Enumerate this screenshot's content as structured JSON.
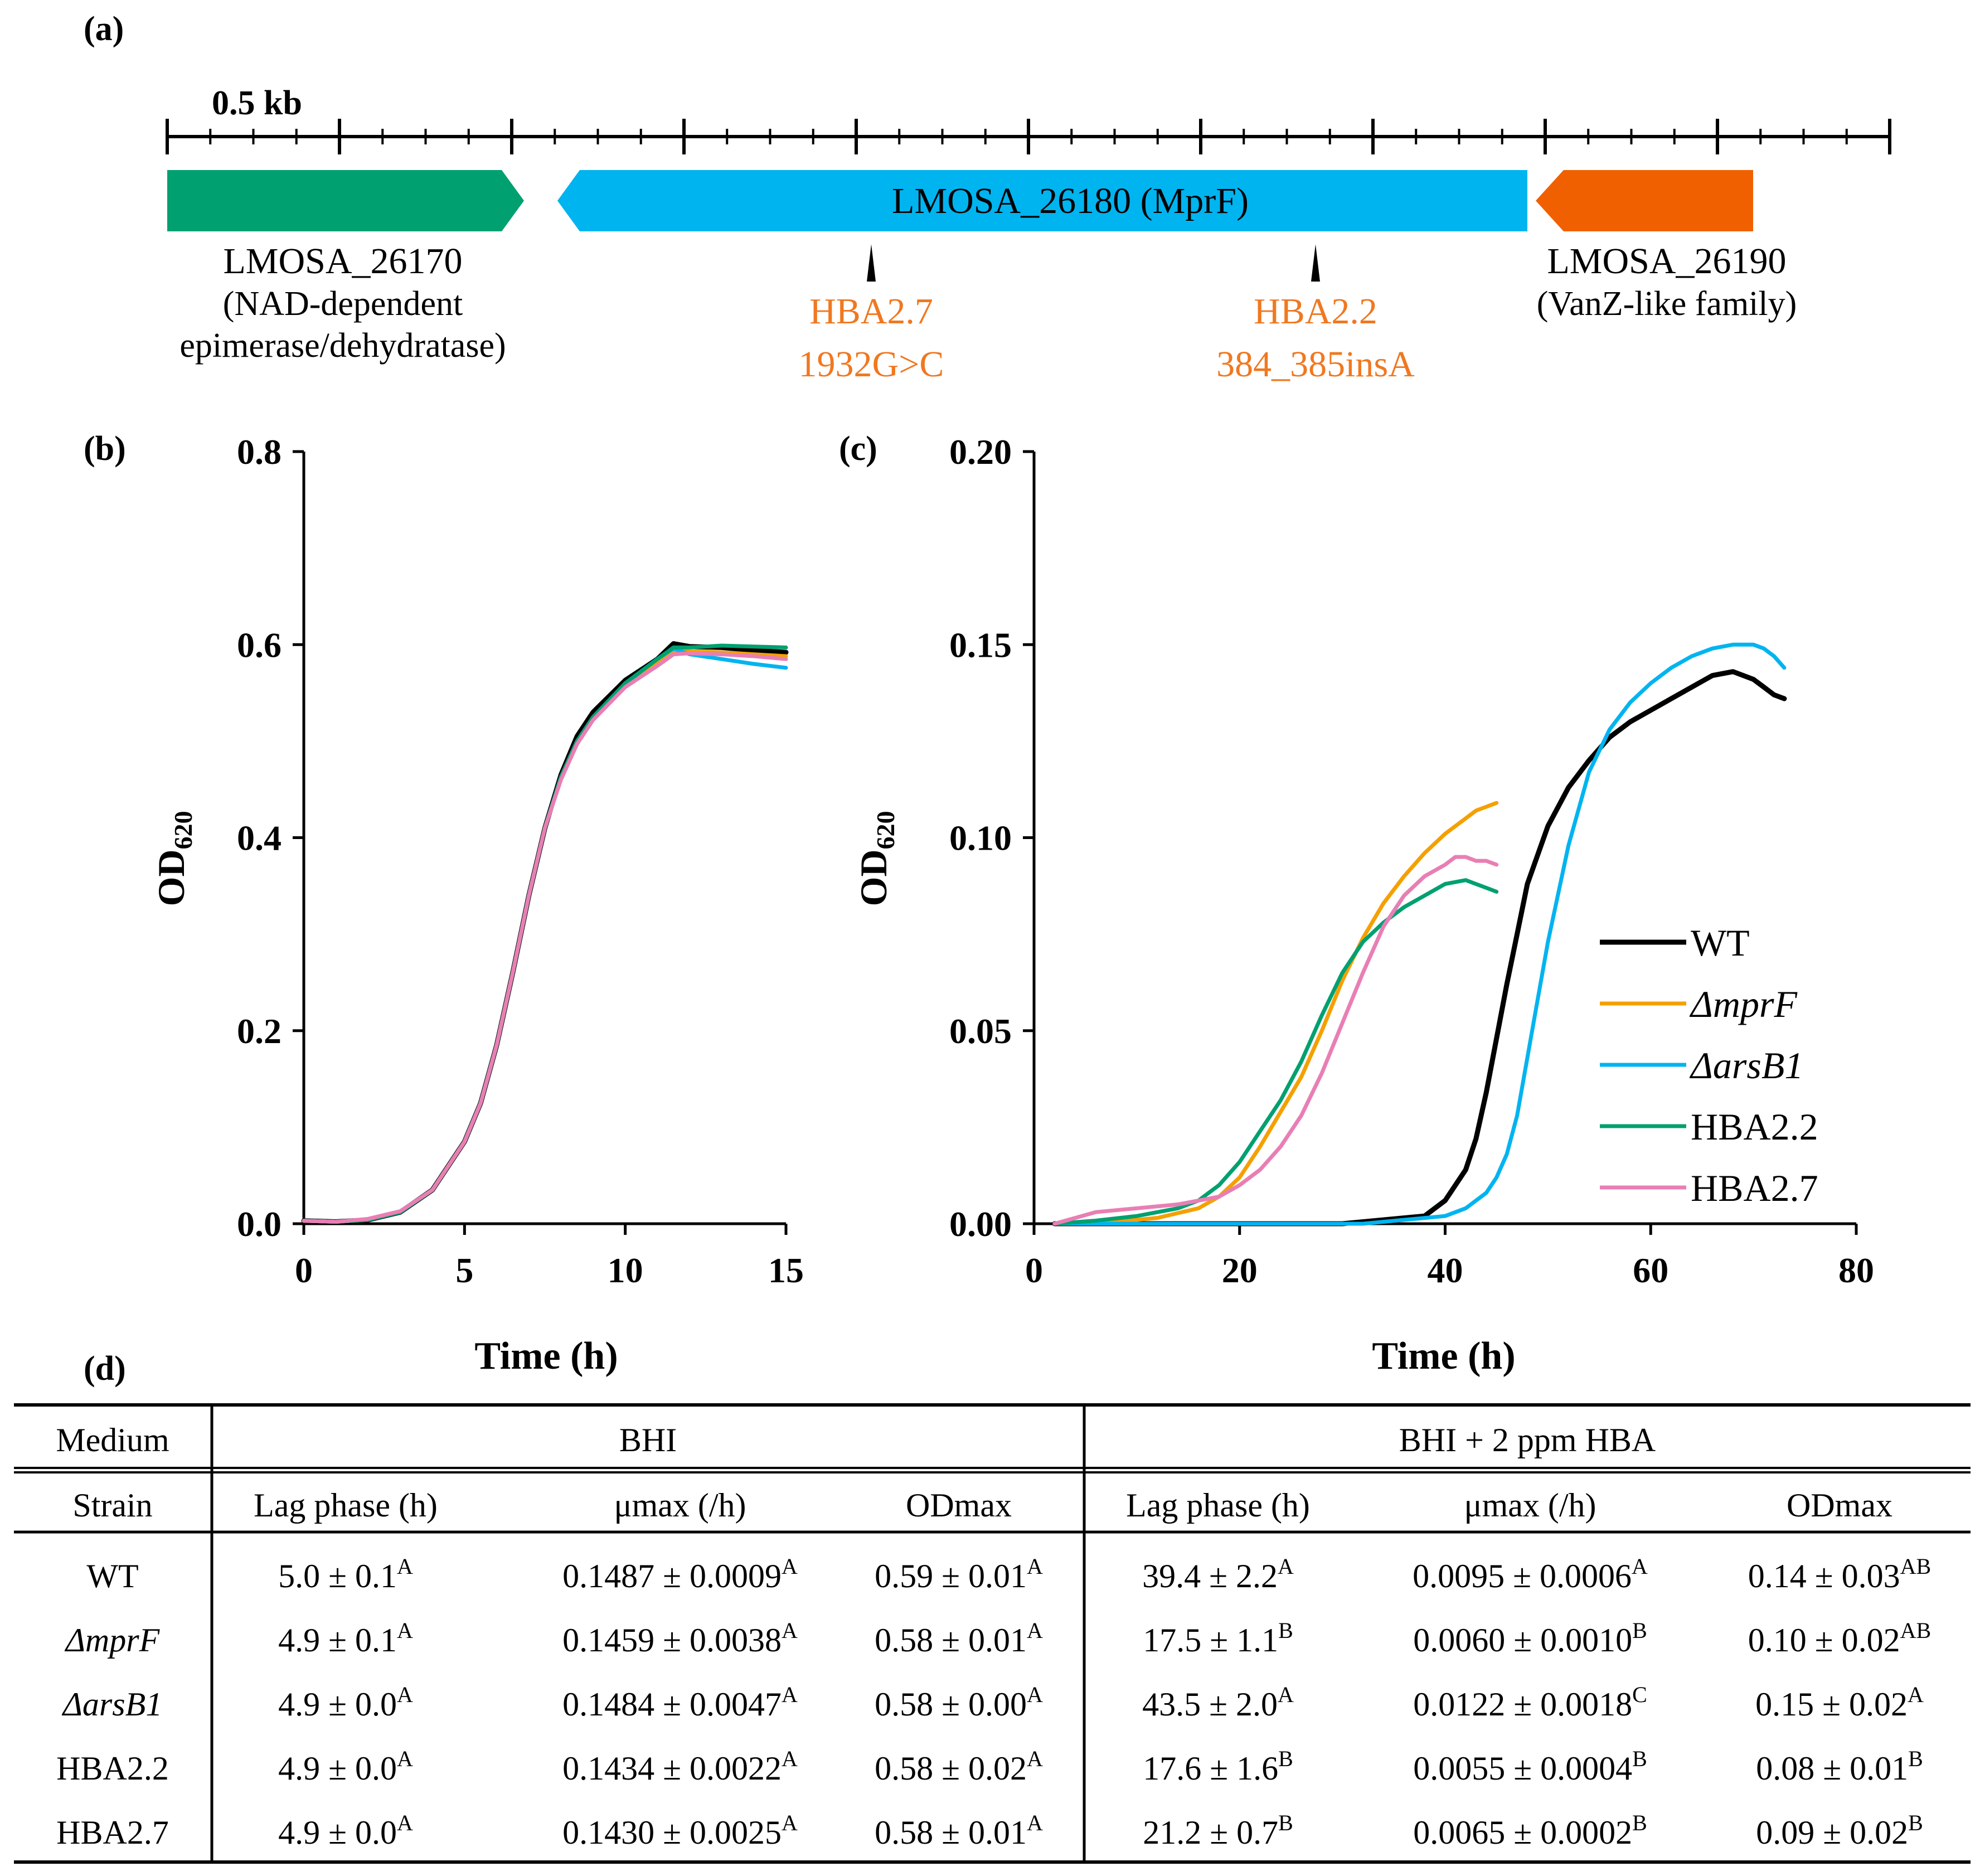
{
  "panel_labels": {
    "a": "(a)",
    "b": "(b)",
    "c": "(c)",
    "d": "(d)"
  },
  "colors": {
    "wt": "#000000",
    "mprf": "#f5a000",
    "arsb1": "#00b4f0",
    "hba22": "#00a070",
    "hba27": "#e87fb4",
    "gene_left": "#00a070",
    "gene_mid": "#00b4f0",
    "gene_right": "#f06000",
    "mutation": "#f07820"
  },
  "gene_map": {
    "scale_label": "0.5 kb",
    "genes": [
      {
        "id": "LMOSA_26170",
        "name": "LMOSA_26170",
        "desc1": "(NAD-dependent",
        "desc2": "epimerase/dehydratase)"
      },
      {
        "id": "LMOSA_26180",
        "name": "LMOSA_26180 (MprF)"
      },
      {
        "id": "LMOSA_26190",
        "name": "LMOSA_26190",
        "desc1": "(VanZ-like family)"
      }
    ],
    "mutations": [
      {
        "strain": "HBA2.7",
        "change": "1932G>C"
      },
      {
        "strain": "HBA2.2",
        "change": "384_385insA"
      }
    ]
  },
  "chart_data": [
    {
      "type": "line",
      "panel": "b",
      "xlabel": "Time (h)",
      "ylabel_main": "OD",
      "ylabel_sub": "620",
      "xlim": [
        0,
        15
      ],
      "ylim": [
        0,
        0.8
      ],
      "xticks": [
        "0",
        "5",
        "10",
        "15"
      ],
      "yticks": [
        "0.0",
        "0.2",
        "0.4",
        "0.6",
        "0.8"
      ],
      "series": [
        {
          "name": "WT",
          "x": [
            0,
            1,
            2,
            3,
            4,
            5,
            5.5,
            6,
            6.5,
            7,
            7.5,
            8,
            8.5,
            9,
            10,
            11,
            11.5,
            12,
            13,
            14,
            15
          ],
          "values": [
            0.003,
            0.002,
            0.004,
            0.012,
            0.035,
            0.085,
            0.125,
            0.185,
            0.26,
            0.34,
            0.41,
            0.465,
            0.505,
            0.53,
            0.563,
            0.585,
            0.601,
            0.598,
            0.597,
            0.594,
            0.592
          ]
        },
        {
          "name": "ΔmprF",
          "x": [
            0,
            1,
            2,
            3,
            4,
            5,
            5.5,
            6,
            6.5,
            7,
            7.5,
            8,
            8.5,
            9,
            10,
            11,
            11.5,
            12,
            13,
            14,
            15
          ],
          "values": [
            0.003,
            0.002,
            0.004,
            0.012,
            0.035,
            0.085,
            0.125,
            0.185,
            0.26,
            0.34,
            0.41,
            0.463,
            0.5,
            0.525,
            0.558,
            0.58,
            0.594,
            0.593,
            0.592,
            0.59,
            0.588
          ]
        },
        {
          "name": "ΔarsB1",
          "x": [
            0,
            1,
            2,
            3,
            4,
            5,
            5.5,
            6,
            6.5,
            7,
            7.5,
            8,
            8.5,
            9,
            10,
            11,
            11.5,
            12,
            13,
            14,
            15
          ],
          "values": [
            0.003,
            0.002,
            0.004,
            0.012,
            0.035,
            0.085,
            0.125,
            0.185,
            0.26,
            0.34,
            0.41,
            0.463,
            0.5,
            0.525,
            0.56,
            0.585,
            0.596,
            0.59,
            0.585,
            0.58,
            0.576
          ]
        },
        {
          "name": "HBA2.2",
          "x": [
            0,
            1,
            2,
            3,
            4,
            5,
            5.5,
            6,
            6.5,
            7,
            7.5,
            8,
            8.5,
            9,
            10,
            11,
            11.5,
            12,
            13,
            14,
            15
          ],
          "values": [
            0.003,
            0.002,
            0.004,
            0.012,
            0.035,
            0.085,
            0.125,
            0.185,
            0.26,
            0.34,
            0.41,
            0.463,
            0.5,
            0.525,
            0.56,
            0.585,
            0.597,
            0.597,
            0.599,
            0.598,
            0.597
          ]
        },
        {
          "name": "HBA2.7",
          "x": [
            0,
            1,
            2,
            3,
            4,
            5,
            5.5,
            6,
            6.5,
            7,
            7.5,
            8,
            8.5,
            9,
            10,
            11,
            11.5,
            12,
            13,
            14,
            15
          ],
          "values": [
            0.003,
            0.002,
            0.005,
            0.013,
            0.035,
            0.085,
            0.125,
            0.185,
            0.26,
            0.34,
            0.41,
            0.46,
            0.497,
            0.522,
            0.556,
            0.578,
            0.59,
            0.591,
            0.59,
            0.588,
            0.585
          ]
        }
      ]
    },
    {
      "type": "line",
      "panel": "c",
      "xlabel": "Time (h)",
      "ylabel_main": "OD",
      "ylabel_sub": "620",
      "xlim": [
        0,
        80
      ],
      "ylim": [
        0,
        0.2
      ],
      "xticks": [
        "0",
        "20",
        "40",
        "60",
        "80"
      ],
      "yticks": [
        "0.00",
        "0.05",
        "0.10",
        "0.15",
        "0.20"
      ],
      "legend_position": "right",
      "series": [
        {
          "name": "WT",
          "x": [
            2,
            30,
            38,
            40,
            42,
            43,
            44,
            45,
            46,
            47,
            48,
            50,
            52,
            54,
            56,
            58,
            60,
            62,
            64,
            66,
            68,
            70,
            71,
            72,
            73
          ],
          "values": [
            0,
            0,
            0.002,
            0.006,
            0.014,
            0.022,
            0.034,
            0.048,
            0.062,
            0.075,
            0.088,
            0.103,
            0.113,
            0.12,
            0.126,
            0.13,
            0.133,
            0.136,
            0.139,
            0.142,
            0.143,
            0.141,
            0.139,
            0.137,
            0.136
          ]
        },
        {
          "name": "ΔmprF",
          "x": [
            2,
            8,
            12,
            16,
            18,
            20,
            22,
            24,
            26,
            28,
            30,
            32,
            34,
            36,
            38,
            40,
            42,
            43,
            44,
            45
          ],
          "values": [
            0,
            0.0005,
            0.0015,
            0.004,
            0.007,
            0.012,
            0.02,
            0.029,
            0.038,
            0.05,
            0.063,
            0.074,
            0.083,
            0.09,
            0.096,
            0.101,
            0.105,
            0.107,
            0.108,
            0.109
          ]
        },
        {
          "name": "ΔarsB1",
          "x": [
            2,
            32,
            40,
            42,
            44,
            45,
            46,
            47,
            48,
            49,
            50,
            52,
            54,
            56,
            58,
            60,
            62,
            64,
            66,
            68,
            70,
            71,
            72,
            73
          ],
          "values": [
            0,
            0,
            0.002,
            0.004,
            0.008,
            0.012,
            0.018,
            0.028,
            0.043,
            0.058,
            0.073,
            0.098,
            0.117,
            0.128,
            0.135,
            0.14,
            0.144,
            0.147,
            0.149,
            0.15,
            0.15,
            0.149,
            0.147,
            0.144
          ]
        },
        {
          "name": "HBA2.2",
          "x": [
            2,
            6,
            10,
            14,
            16,
            18,
            20,
            22,
            24,
            26,
            28,
            30,
            32,
            34,
            36,
            38,
            40,
            42,
            43,
            44,
            45
          ],
          "values": [
            0,
            0.0008,
            0.002,
            0.004,
            0.006,
            0.01,
            0.016,
            0.024,
            0.032,
            0.042,
            0.054,
            0.065,
            0.073,
            0.078,
            0.082,
            0.085,
            0.088,
            0.089,
            0.088,
            0.087,
            0.086
          ]
        },
        {
          "name": "HBA2.7",
          "x": [
            2,
            4,
            6,
            10,
            14,
            18,
            20,
            22,
            24,
            26,
            28,
            30,
            32,
            34,
            36,
            38,
            40,
            41,
            42,
            43,
            44,
            45
          ],
          "values": [
            0,
            0.0015,
            0.003,
            0.004,
            0.005,
            0.007,
            0.01,
            0.014,
            0.02,
            0.028,
            0.039,
            0.052,
            0.065,
            0.077,
            0.085,
            0.09,
            0.093,
            0.095,
            0.095,
            0.094,
            0.094,
            0.093
          ]
        }
      ]
    }
  ],
  "table": {
    "medium_label": "Medium",
    "strain_label": "Strain",
    "media": [
      "BHI",
      "BHI + 2 ppm HBA"
    ],
    "columns": [
      "Lag phase (h)",
      "μmax (/h)",
      "ODmax",
      "Lag phase (h)",
      "μmax (/h)",
      "ODmax"
    ],
    "rows": [
      {
        "strain": "WT",
        "italic": false,
        "cells": [
          {
            "v": "5.0 ± 0.1",
            "s": "A"
          },
          {
            "v": "0.1487 ± 0.0009",
            "s": "A"
          },
          {
            "v": "0.59 ± 0.01",
            "s": "A"
          },
          {
            "v": "39.4 ± 2.2",
            "s": "A"
          },
          {
            "v": "0.0095 ± 0.0006",
            "s": "A"
          },
          {
            "v": "0.14 ± 0.03",
            "s": "AB"
          }
        ]
      },
      {
        "strain": "ΔmprF",
        "italic": true,
        "cells": [
          {
            "v": "4.9 ± 0.1",
            "s": "A"
          },
          {
            "v": "0.1459 ± 0.0038",
            "s": "A"
          },
          {
            "v": "0.58 ± 0.01",
            "s": "A"
          },
          {
            "v": "17.5 ± 1.1",
            "s": "B"
          },
          {
            "v": "0.0060 ± 0.0010",
            "s": "B"
          },
          {
            "v": "0.10 ± 0.02",
            "s": "AB"
          }
        ]
      },
      {
        "strain": "ΔarsB1",
        "italic": true,
        "cells": [
          {
            "v": "4.9 ± 0.0",
            "s": "A"
          },
          {
            "v": "0.1484 ± 0.0047",
            "s": "A"
          },
          {
            "v": "0.58 ± 0.00",
            "s": "A"
          },
          {
            "v": "43.5 ± 2.0",
            "s": "A"
          },
          {
            "v": "0.0122 ± 0.0018",
            "s": "C"
          },
          {
            "v": "0.15 ± 0.02",
            "s": "A"
          }
        ]
      },
      {
        "strain": "HBA2.2",
        "italic": false,
        "cells": [
          {
            "v": "4.9 ± 0.0",
            "s": "A"
          },
          {
            "v": "0.1434 ± 0.0022",
            "s": "A"
          },
          {
            "v": "0.58 ± 0.02",
            "s": "A"
          },
          {
            "v": "17.6 ± 1.6",
            "s": "B"
          },
          {
            "v": "0.0055 ± 0.0004",
            "s": "B"
          },
          {
            "v": "0.08 ± 0.01",
            "s": "B"
          }
        ]
      },
      {
        "strain": "HBA2.7",
        "italic": false,
        "cells": [
          {
            "v": "4.9 ± 0.0",
            "s": "A"
          },
          {
            "v": "0.1430 ± 0.0025",
            "s": "A"
          },
          {
            "v": "0.58 ± 0.01",
            "s": "A"
          },
          {
            "v": "21.2 ± 0.7",
            "s": "B"
          },
          {
            "v": "0.0065 ± 0.0002",
            "s": "B"
          },
          {
            "v": "0.09 ± 0.02",
            "s": "B"
          }
        ]
      }
    ]
  }
}
